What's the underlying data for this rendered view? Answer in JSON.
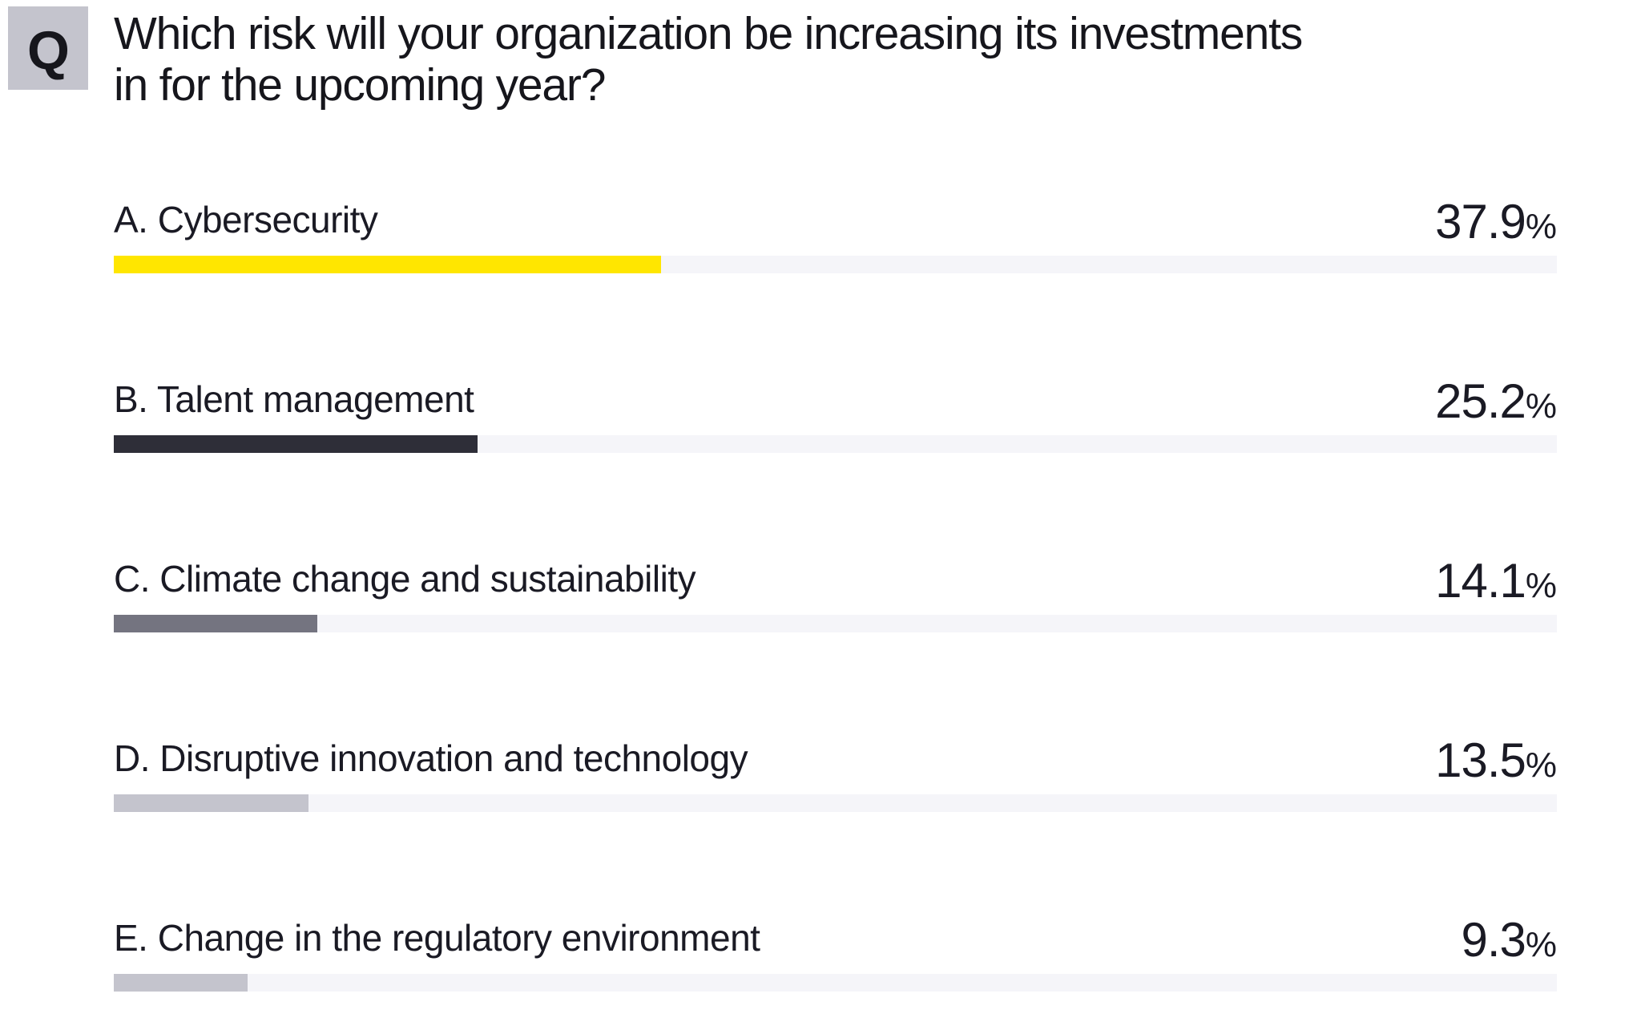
{
  "question": {
    "badge": "Q",
    "text": "Which risk will your organization be increasing its investments in for the upcoming year?",
    "lines": [
      "Which risk will your organization be increasing its investments",
      "in for the upcoming year?"
    ]
  },
  "chart_data": {
    "type": "bar",
    "orientation": "horizontal",
    "title": "Which risk will your organization be increasing its investments in for the upcoming year?",
    "xlim": [
      0,
      100
    ],
    "grid": false,
    "legend": "none",
    "percent_sign": "%",
    "categories": [
      "A. Cybersecurity",
      "B. Talent management",
      "C. Climate change and sustainability",
      "D. Disruptive innovation and technology",
      "E. Change in the regulatory environment"
    ],
    "values": [
      37.9,
      25.2,
      14.1,
      13.5,
      9.3
    ],
    "colors": {
      "track": "#F5F5F9",
      "accent_yellow": "#FFE600",
      "dark_charcoal": "#2E2E38",
      "mid_gray": "#747480",
      "light_gray": "#C4C4CD",
      "badge_gray": "#C4C4CD",
      "text": "#1A1A24"
    },
    "rows": [
      {
        "label": "A. Cybersecurity",
        "value": 37.9,
        "percent_label": "37.9%",
        "color": "#FFE600"
      },
      {
        "label": "B. Talent management",
        "value": 25.2,
        "percent_label": "25.2%",
        "color": "#2E2E38"
      },
      {
        "label": "C. Climate change and sustainability",
        "value": 14.1,
        "percent_label": "14.1%",
        "color": "#747480"
      },
      {
        "label": "D. Disruptive innovation and technology",
        "value": 13.5,
        "percent_label": "13.5%",
        "color": "#C4C4CD"
      },
      {
        "label": "E. Change in the regulatory environment",
        "value": 9.3,
        "percent_label": "9.3%",
        "color": "#C4C4CD"
      }
    ]
  }
}
